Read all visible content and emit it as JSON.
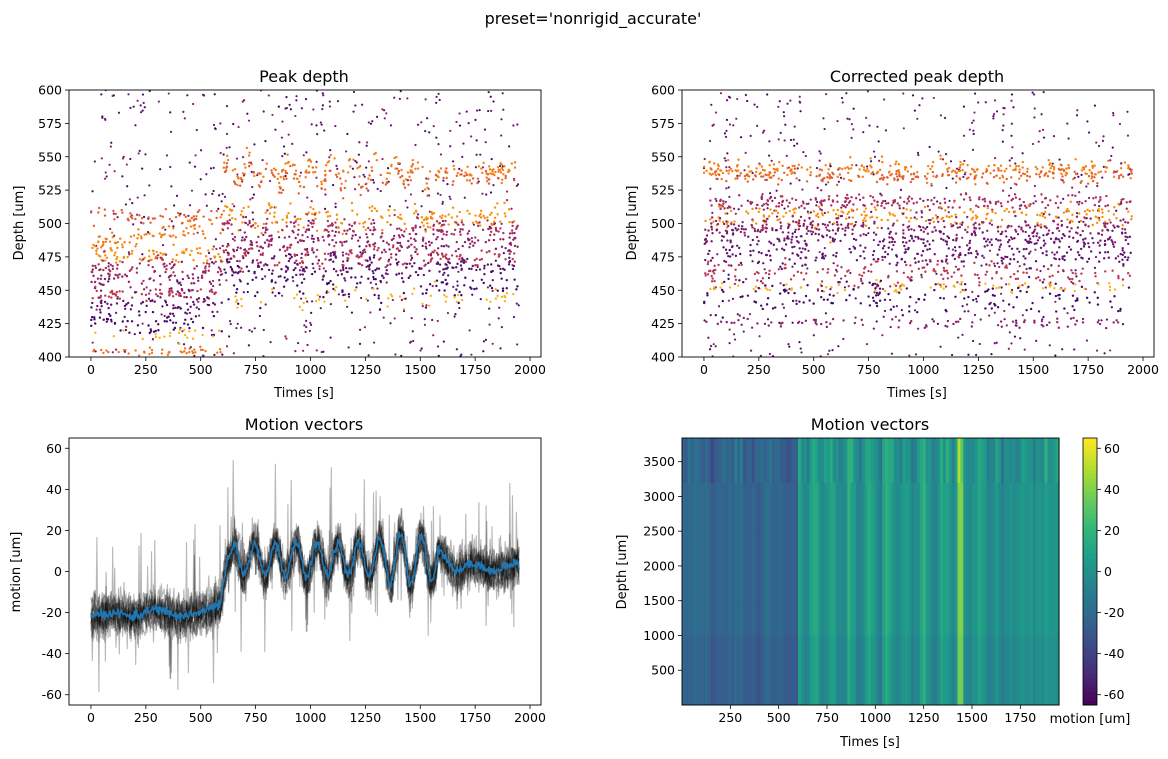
{
  "figure": {
    "suptitle": "preset='nonrigid_accurate'"
  },
  "chart_data": [
    {
      "id": "peak",
      "type": "scatter",
      "title": "Peak depth",
      "xlabel": "Times [s]",
      "ylabel": "Depth [um]",
      "xlim": [
        -100,
        2050
      ],
      "ylim": [
        400,
        600
      ],
      "xticks": [
        0,
        250,
        500,
        750,
        1000,
        1250,
        1500,
        1750,
        2000
      ],
      "yticks": [
        400,
        425,
        450,
        475,
        500,
        525,
        550,
        575,
        600
      ],
      "colormap": "inferno",
      "bands": [
        {
          "depth": 512,
          "slope": 0.025,
          "osc": 8,
          "color": "#f57d15",
          "spread": 3.5,
          "density": 1.0
        },
        {
          "depth": 534,
          "slope": 0.0,
          "osc": 8,
          "color": "#e55c30",
          "spread": 3.0,
          "density": 0.6
        },
        {
          "depth": 505,
          "slope": 0.0,
          "osc": 6,
          "color": "#f98e09",
          "spread": 4.0,
          "density": 0.9
        },
        {
          "depth": 495,
          "slope": 0.0,
          "osc": 6,
          "color": "#a92e5e",
          "spread": 4.0,
          "density": 0.9
        },
        {
          "depth": 485,
          "slope": 0.0,
          "osc": 6,
          "color": "#8a226a",
          "spread": 4.0,
          "density": 0.8
        },
        {
          "depth": 475,
          "slope": 0.0,
          "osc": 6,
          "color": "#bc3754",
          "spread": 3.0,
          "density": 0.8
        },
        {
          "depth": 468,
          "slope": 0.0,
          "osc": 6,
          "color": "#5c126e",
          "spread": 3.5,
          "density": 0.8
        },
        {
          "depth": 455,
          "slope": 0.0,
          "osc": 6,
          "color": "#420a68",
          "spread": 6.0,
          "density": 0.7
        },
        {
          "depth": 432,
          "slope": 0.0,
          "osc": 5,
          "color": "#f1731d",
          "spread": 1.5,
          "density": 0.5
        },
        {
          "depth": 445,
          "slope": 0.0,
          "osc": 5,
          "color": "#fcb519",
          "spread": 2.5,
          "density": 0.3
        }
      ],
      "event_time": 600
    },
    {
      "id": "corrected",
      "type": "scatter",
      "title": "Corrected peak depth",
      "xlabel": "Times [s]",
      "ylabel": "Depth [um]",
      "xlim": [
        -100,
        2050
      ],
      "ylim": [
        400,
        600
      ],
      "xticks": [
        0,
        250,
        500,
        750,
        1000,
        1250,
        1500,
        1750,
        2000
      ],
      "yticks": [
        400,
        425,
        450,
        475,
        500,
        525,
        550,
        575,
        600
      ],
      "colormap": "inferno",
      "bands": [
        {
          "depth": 540,
          "color": "#f57d15",
          "spread": 3.5,
          "density": 1.0
        },
        {
          "depth": 535,
          "color": "#e55c30",
          "spread": 2.5,
          "density": 0.6
        },
        {
          "depth": 516,
          "color": "#a92e5e",
          "spread": 3.0,
          "density": 0.8
        },
        {
          "depth": 505,
          "color": "#f98e09",
          "spread": 4.0,
          "density": 0.8
        },
        {
          "depth": 497,
          "color": "#8a226a",
          "spread": 4.0,
          "density": 0.9
        },
        {
          "depth": 488,
          "color": "#6a176e",
          "spread": 4.0,
          "density": 0.8
        },
        {
          "depth": 476,
          "color": "#5c126e",
          "spread": 4.0,
          "density": 0.7
        },
        {
          "depth": 462,
          "color": "#bc3754",
          "spread": 5.0,
          "density": 0.7
        },
        {
          "depth": 452,
          "color": "#fcb519",
          "spread": 2.0,
          "density": 0.3
        },
        {
          "depth": 445,
          "color": "#420a68",
          "spread": 6.0,
          "density": 0.6
        },
        {
          "depth": 426,
          "color": "#8a226a",
          "spread": 2.0,
          "density": 0.3
        }
      ]
    },
    {
      "id": "motion_lines",
      "type": "line",
      "title": "Motion vectors",
      "xlabel": "",
      "ylabel": "motion [um]",
      "xlim": [
        -100,
        2050
      ],
      "ylim": [
        -65,
        65
      ],
      "xticks": [
        0,
        250,
        500,
        750,
        1000,
        1250,
        1500,
        1750,
        2000
      ],
      "yticks": [
        -60,
        -40,
        -20,
        0,
        20,
        40,
        60
      ],
      "mean_color": "#1f77b4",
      "trace_color": "#000000",
      "n_traces": 12,
      "mean_keypoints": [
        [
          0,
          -22
        ],
        [
          100,
          -20
        ],
        [
          200,
          -22
        ],
        [
          300,
          -18
        ],
        [
          400,
          -22
        ],
        [
          500,
          -20
        ],
        [
          590,
          -16
        ],
        [
          620,
          5
        ],
        [
          650,
          12
        ]
      ],
      "oscillation": {
        "start": 650,
        "end": 1580,
        "period": 95,
        "amplitude": 9,
        "offset": 4,
        "growth_peak": 1430
      },
      "tail_value": 2,
      "t_end": 1950
    },
    {
      "id": "motion_heatmap",
      "type": "heatmap",
      "title": "Motion vectors",
      "xlabel": "Times [s]",
      "ylabel": "Depth [um]",
      "xlim": [
        0,
        1950
      ],
      "ylim": [
        0,
        3840
      ],
      "xticks": [
        250,
        500,
        750,
        1000,
        1250,
        1500,
        1750
      ],
      "yticks": [
        500,
        1000,
        1500,
        2000,
        2500,
        3000,
        3500
      ],
      "colormap": "viridis",
      "vmin": -65,
      "vmax": 65,
      "colorbar": {
        "label": "motion [um]",
        "ticks": [
          -60,
          -40,
          -20,
          0,
          20,
          40,
          60
        ]
      }
    }
  ]
}
